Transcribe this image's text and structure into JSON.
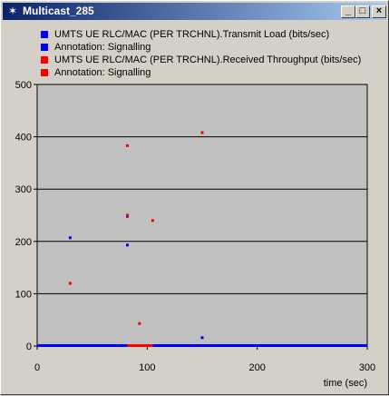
{
  "window": {
    "title": "Multicast_285",
    "icon": "star-icon",
    "buttons": [
      "minimize",
      "maximize",
      "close"
    ]
  },
  "legend": [
    {
      "label": "UMTS UE RLC/MAC (PER TRCHNL).Transmit Load (bits/sec)",
      "color": "#0000ff"
    },
    {
      "label": "Annotation: Signalling",
      "color": "#0000ff"
    },
    {
      "label": "UMTS UE RLC/MAC (PER TRCHNL).Received Throughput (bits/sec)",
      "color": "#ff0000"
    },
    {
      "label": "Annotation: Signalling",
      "color": "#ff0000"
    }
  ],
  "chart_data": {
    "type": "scatter",
    "xlabel": "time (sec)",
    "ylabel": "",
    "xlim": [
      0,
      300
    ],
    "ylim": [
      0,
      500
    ],
    "x_ticks": [
      0,
      100,
      200,
      300
    ],
    "y_ticks": [
      0,
      100,
      200,
      300,
      400,
      500
    ],
    "grid": "horizontal",
    "background": "#c0c0c0",
    "series": [
      {
        "name": "UMTS UE RLC/MAC (PER TRCHNL).Transmit Load (bits/sec)",
        "color": "#0000ff",
        "points": [
          [
            30,
            207
          ],
          [
            82,
            248
          ],
          [
            82,
            193
          ],
          [
            150,
            16
          ]
        ],
        "baseline_range": [
          0,
          300
        ]
      },
      {
        "name": "UMTS UE RLC/MAC (PER TRCHNL).Received Throughput (bits/sec)",
        "color": "#ff0000",
        "points": [
          [
            30,
            120
          ],
          [
            82,
            383
          ],
          [
            82,
            250
          ],
          [
            93,
            43
          ],
          [
            105,
            240
          ],
          [
            150,
            408
          ]
        ],
        "baseline_range": [
          82,
          105
        ]
      }
    ]
  }
}
